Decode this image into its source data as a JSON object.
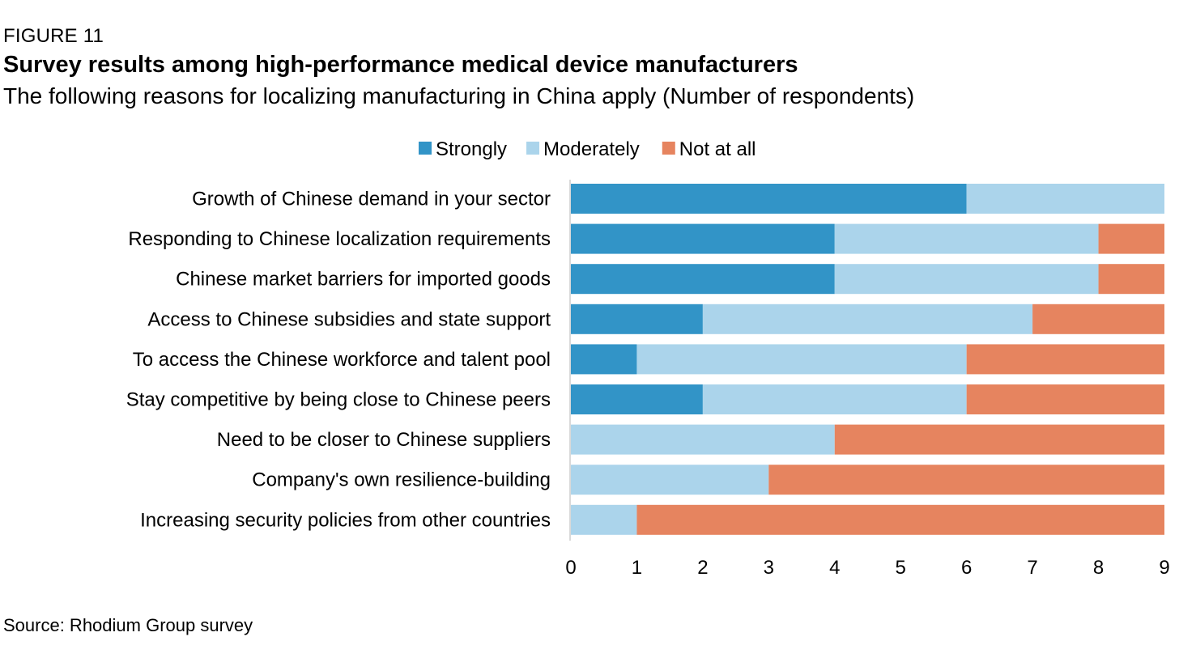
{
  "figure_label": "FIGURE 11",
  "title": "Survey results among high-performance medical device manufacturers",
  "subtitle": "The following reasons for localizing manufacturing in China apply (Number of respondents)",
  "source": "Source: Rhodium Group survey",
  "colors": {
    "strongly": "#3294C7",
    "moderately": "#ABD4EB",
    "not_at_all": "#E6845F",
    "axis": "#D9D9D9"
  },
  "chart_data": {
    "type": "bar",
    "orientation": "horizontal",
    "stacked": true,
    "categories": [
      "Growth of Chinese demand in your sector",
      "Responding to Chinese localization requirements",
      "Chinese market barriers for imported goods",
      "Access to Chinese subsidies and state support",
      "To access the Chinese workforce and talent pool",
      "Stay competitive by being close to Chinese peers",
      "Need to be closer to Chinese suppliers",
      "Company's own resilience-building",
      "Increasing security policies from other countries"
    ],
    "series": [
      {
        "name": "Strongly",
        "color_key": "strongly",
        "values": [
          6,
          4,
          4,
          2,
          1,
          2,
          0,
          0,
          0
        ]
      },
      {
        "name": "Moderately",
        "color_key": "moderately",
        "values": [
          3,
          4,
          4,
          5,
          5,
          4,
          4,
          3,
          1
        ]
      },
      {
        "name": "Not at all",
        "color_key": "not_at_all",
        "values": [
          0,
          1,
          1,
          2,
          3,
          3,
          5,
          6,
          8
        ]
      }
    ],
    "xlim": [
      0,
      9
    ],
    "xticks": [
      "0",
      "1",
      "2",
      "3",
      "4",
      "5",
      "6",
      "7",
      "8",
      "9"
    ],
    "legend": "top",
    "grid": false
  }
}
